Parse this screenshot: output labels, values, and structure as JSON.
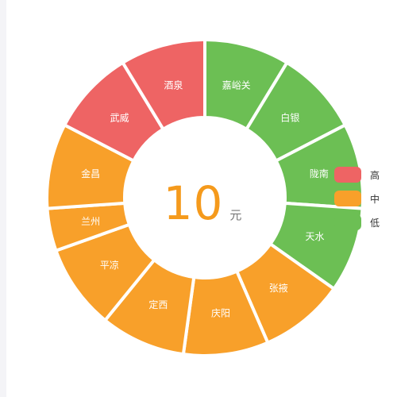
{
  "chart_data": {
    "type": "pie",
    "variant": "donut",
    "start_angle_deg": 90,
    "clockwise": true,
    "slices": [
      {
        "label": "嘉峪关",
        "value": 1,
        "level": "low"
      },
      {
        "label": "白银",
        "value": 1,
        "level": "low"
      },
      {
        "label": "陇南",
        "value": 1,
        "level": "low"
      },
      {
        "label": "天水",
        "value": 1,
        "level": "low"
      },
      {
        "label": "张掖",
        "value": 1,
        "level": "medium"
      },
      {
        "label": "庆阳",
        "value": 1,
        "level": "medium"
      },
      {
        "label": "定西",
        "value": 1,
        "level": "medium"
      },
      {
        "label": "平凉",
        "value": 1,
        "level": "medium"
      },
      {
        "label": "兰州",
        "value": 0.5,
        "level": "medium"
      },
      {
        "label": "金昌",
        "value": 1,
        "level": "medium"
      },
      {
        "label": "武威",
        "value": 1,
        "level": "high"
      },
      {
        "label": "酒泉",
        "value": 1,
        "level": "high"
      }
    ],
    "center": {
      "value": "10",
      "unit": "元"
    },
    "legend": {
      "placement": "right",
      "items": [
        {
          "key": "high",
          "label": "高",
          "color": "#ee6464"
        },
        {
          "key": "medium",
          "label": "中",
          "color": "#f8a02a"
        },
        {
          "key": "low",
          "label": "低",
          "color": "#6cbf54"
        }
      ]
    }
  }
}
